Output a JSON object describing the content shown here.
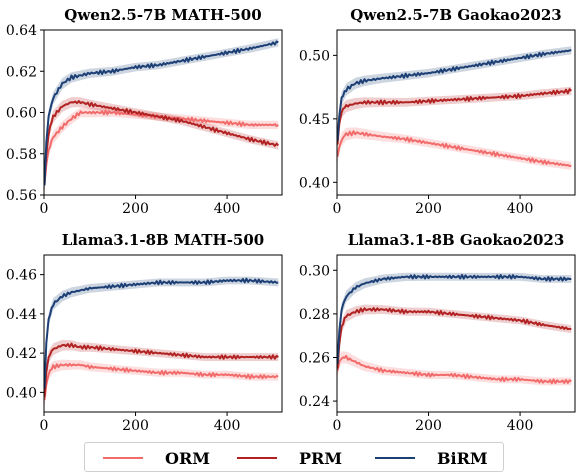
{
  "colors": {
    "ORM": "#f26b6b",
    "PRM": "#b22222",
    "BiRM": "#1c3f75"
  },
  "legend": {
    "items": [
      {
        "name": "ORM"
      },
      {
        "name": "PRM"
      },
      {
        "name": "BiRM"
      }
    ]
  },
  "chart_data": [
    {
      "type": "line",
      "title": "Qwen2.5-7B MATH-500",
      "xlim": [
        0,
        520
      ],
      "ylim": [
        0.56,
        0.64
      ],
      "xticks": [
        0,
        200,
        400
      ],
      "yticks": [
        0.56,
        0.58,
        0.6,
        0.62,
        0.64
      ],
      "ytick_labels": [
        "0.56",
        "0.58",
        "0.60",
        "0.62",
        "0.64"
      ],
      "x": [
        1,
        5,
        10,
        20,
        40,
        60,
        80,
        100,
        150,
        200,
        250,
        300,
        350,
        400,
        450,
        512
      ],
      "series": [
        {
          "name": "ORM",
          "values": [
            0.565,
            0.575,
            0.582,
            0.588,
            0.593,
            0.597,
            0.6,
            0.6,
            0.6,
            0.599,
            0.598,
            0.597,
            0.596,
            0.595,
            0.594,
            0.594
          ]
        },
        {
          "name": "PRM",
          "values": [
            0.565,
            0.58,
            0.59,
            0.598,
            0.603,
            0.605,
            0.605,
            0.604,
            0.602,
            0.6,
            0.598,
            0.596,
            0.593,
            0.59,
            0.587,
            0.584
          ]
        },
        {
          "name": "BiRM",
          "values": [
            0.565,
            0.585,
            0.598,
            0.607,
            0.614,
            0.617,
            0.618,
            0.619,
            0.62,
            0.622,
            0.623,
            0.625,
            0.627,
            0.629,
            0.631,
            0.634
          ]
        }
      ]
    },
    {
      "type": "line",
      "title": "Qwen2.5-7B Gaokao2023",
      "xlim": [
        0,
        520
      ],
      "ylim": [
        0.39,
        0.52
      ],
      "xticks": [
        0,
        200,
        400
      ],
      "yticks": [
        0.4,
        0.45,
        0.5
      ],
      "ytick_labels": [
        "0.40",
        "0.45",
        "0.50"
      ],
      "x": [
        1,
        5,
        10,
        20,
        40,
        60,
        80,
        100,
        150,
        200,
        250,
        300,
        350,
        400,
        450,
        512
      ],
      "series": [
        {
          "name": "ORM",
          "values": [
            0.42,
            0.428,
            0.434,
            0.438,
            0.439,
            0.438,
            0.437,
            0.436,
            0.434,
            0.431,
            0.428,
            0.425,
            0.422,
            0.419,
            0.416,
            0.413
          ]
        },
        {
          "name": "PRM",
          "values": [
            0.43,
            0.446,
            0.456,
            0.46,
            0.462,
            0.463,
            0.463,
            0.463,
            0.463,
            0.464,
            0.465,
            0.466,
            0.467,
            0.468,
            0.47,
            0.472
          ]
        },
        {
          "name": "BiRM",
          "values": [
            0.433,
            0.452,
            0.466,
            0.473,
            0.478,
            0.48,
            0.481,
            0.482,
            0.484,
            0.486,
            0.489,
            0.492,
            0.495,
            0.498,
            0.501,
            0.504
          ]
        }
      ]
    },
    {
      "type": "line",
      "title": "Llama3.1-8B MATH-500",
      "xlim": [
        0,
        520
      ],
      "ylim": [
        0.39,
        0.47
      ],
      "xticks": [
        0,
        200,
        400
      ],
      "yticks": [
        0.4,
        0.42,
        0.44,
        0.46
      ],
      "ytick_labels": [
        "0.40",
        "0.42",
        "0.44",
        "0.46"
      ],
      "x": [
        1,
        5,
        10,
        20,
        40,
        60,
        80,
        100,
        150,
        200,
        250,
        300,
        350,
        400,
        450,
        512
      ],
      "series": [
        {
          "name": "ORM",
          "values": [
            0.396,
            0.404,
            0.41,
            0.413,
            0.414,
            0.414,
            0.414,
            0.413,
            0.412,
            0.411,
            0.41,
            0.41,
            0.409,
            0.409,
            0.408,
            0.408
          ]
        },
        {
          "name": "PRM",
          "values": [
            0.398,
            0.41,
            0.418,
            0.422,
            0.424,
            0.424,
            0.423,
            0.423,
            0.422,
            0.421,
            0.42,
            0.419,
            0.418,
            0.418,
            0.418,
            0.418
          ]
        },
        {
          "name": "BiRM",
          "values": [
            0.402,
            0.425,
            0.437,
            0.445,
            0.449,
            0.451,
            0.452,
            0.453,
            0.454,
            0.455,
            0.456,
            0.456,
            0.456,
            0.457,
            0.457,
            0.456
          ]
        }
      ]
    },
    {
      "type": "line",
      "title": "Llama3.1-8B Gaokao2023",
      "xlim": [
        0,
        520
      ],
      "ylim": [
        0.235,
        0.307
      ],
      "xticks": [
        0,
        200,
        400
      ],
      "yticks": [
        0.24,
        0.26,
        0.28,
        0.3
      ],
      "ytick_labels": [
        "0.24",
        "0.26",
        "0.28",
        "0.30"
      ],
      "x": [
        1,
        5,
        10,
        20,
        40,
        60,
        80,
        100,
        150,
        200,
        250,
        300,
        350,
        400,
        450,
        512
      ],
      "series": [
        {
          "name": "ORM",
          "values": [
            0.254,
            0.258,
            0.26,
            0.26,
            0.258,
            0.256,
            0.255,
            0.254,
            0.253,
            0.252,
            0.252,
            0.251,
            0.25,
            0.25,
            0.249,
            0.249
          ]
        },
        {
          "name": "PRM",
          "values": [
            0.255,
            0.266,
            0.274,
            0.279,
            0.281,
            0.282,
            0.282,
            0.282,
            0.281,
            0.281,
            0.28,
            0.279,
            0.278,
            0.277,
            0.275,
            0.273
          ]
        },
        {
          "name": "BiRM",
          "values": [
            0.257,
            0.272,
            0.282,
            0.288,
            0.292,
            0.294,
            0.295,
            0.296,
            0.297,
            0.297,
            0.297,
            0.297,
            0.297,
            0.297,
            0.296,
            0.296
          ]
        }
      ]
    }
  ]
}
